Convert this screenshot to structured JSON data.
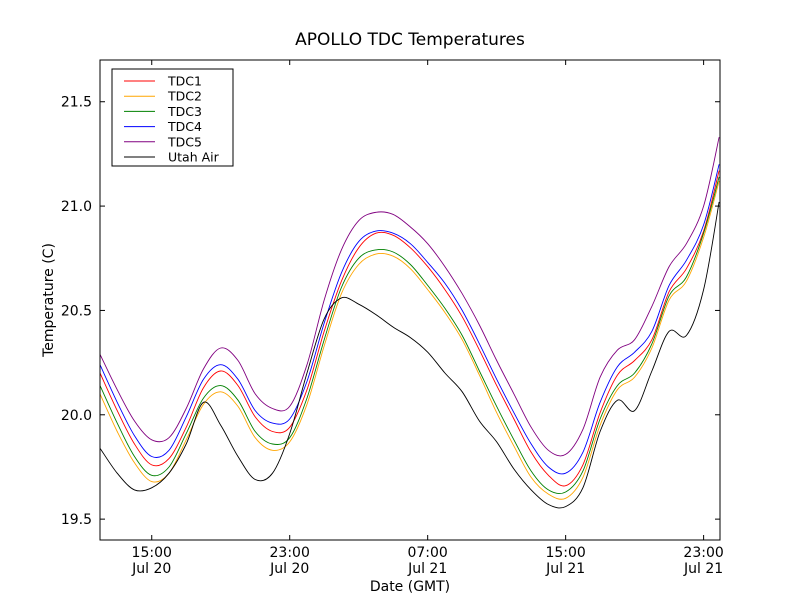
{
  "chart_data": {
    "type": "line",
    "title": "APOLLO TDC Temperatures",
    "xlabel": "Date (GMT)",
    "ylabel": "Temperature (C)",
    "x_unit": "hours since Jul 20 00:00 GMT",
    "xlim": [
      12.0,
      47.95
    ],
    "ylim": [
      19.4,
      21.7
    ],
    "grid": false,
    "legend_position": "top-left",
    "x_ticks": [
      {
        "value": 15,
        "line1": "15:00",
        "line2": "Jul 20"
      },
      {
        "value": 23,
        "line1": "23:00",
        "line2": "Jul 20"
      },
      {
        "value": 31,
        "line1": "07:00",
        "line2": "Jul 21"
      },
      {
        "value": 39,
        "line1": "15:00",
        "line2": "Jul 21"
      },
      {
        "value": 47,
        "line1": "23:00",
        "line2": "Jul 21"
      }
    ],
    "y_ticks": [
      {
        "value": 19.5,
        "label": "19.5"
      },
      {
        "value": 20.0,
        "label": "20.0"
      },
      {
        "value": 20.5,
        "label": "20.5"
      },
      {
        "value": 21.0,
        "label": "21.0"
      },
      {
        "value": 21.5,
        "label": "21.5"
      }
    ],
    "x": [
      12,
      13,
      14,
      15,
      16,
      17,
      18,
      19,
      20,
      21,
      22,
      23,
      24,
      25,
      26,
      27,
      28,
      29,
      30,
      31,
      32,
      33,
      34,
      35,
      36,
      37,
      38,
      39,
      40,
      41,
      42,
      43,
      44,
      45,
      46,
      47,
      47.9
    ],
    "series": [
      {
        "name": "TDC1",
        "color": "#ff0000",
        "values": [
          20.2,
          20.02,
          19.86,
          19.76,
          19.79,
          19.94,
          20.13,
          20.21,
          20.14,
          19.99,
          19.92,
          19.94,
          20.12,
          20.4,
          20.64,
          20.8,
          20.87,
          20.86,
          20.8,
          20.71,
          20.6,
          20.47,
          20.31,
          20.14,
          19.98,
          19.82,
          19.71,
          19.66,
          19.76,
          20.01,
          20.19,
          20.26,
          20.36,
          20.59,
          20.7,
          20.88,
          21.17
        ]
      },
      {
        "name": "TDC2",
        "color": "#ffa500",
        "values": [
          20.1,
          19.92,
          19.77,
          19.68,
          19.72,
          19.88,
          20.05,
          20.11,
          20.04,
          19.89,
          19.83,
          19.87,
          20.05,
          20.33,
          20.58,
          20.72,
          20.77,
          20.76,
          20.7,
          20.6,
          20.49,
          20.36,
          20.19,
          20.01,
          19.85,
          19.7,
          19.62,
          19.6,
          19.7,
          19.95,
          20.12,
          20.18,
          20.32,
          20.55,
          20.64,
          20.85,
          21.12
        ]
      },
      {
        "name": "TDC3",
        "color": "#008000",
        "values": [
          20.14,
          19.96,
          19.8,
          19.71,
          19.75,
          19.91,
          20.08,
          20.14,
          20.07,
          19.92,
          19.86,
          19.89,
          20.08,
          20.36,
          20.61,
          20.75,
          20.79,
          20.78,
          20.72,
          20.62,
          20.51,
          20.38,
          20.21,
          20.04,
          19.88,
          19.73,
          19.64,
          19.63,
          19.73,
          19.98,
          20.14,
          20.2,
          20.34,
          20.57,
          20.66,
          20.87,
          21.14
        ]
      },
      {
        "name": "TDC4",
        "color": "#0000ff",
        "values": [
          20.24,
          20.06,
          19.9,
          19.8,
          19.83,
          19.99,
          20.17,
          20.24,
          20.17,
          20.02,
          19.96,
          19.98,
          20.16,
          20.44,
          20.68,
          20.83,
          20.88,
          20.87,
          20.82,
          20.73,
          20.63,
          20.5,
          20.34,
          20.17,
          20.01,
          19.86,
          19.75,
          19.72,
          19.82,
          20.06,
          20.23,
          20.3,
          20.4,
          20.62,
          20.74,
          20.91,
          21.2
        ]
      },
      {
        "name": "TDC5",
        "color": "#800080",
        "values": [
          20.29,
          20.12,
          19.97,
          19.88,
          19.89,
          20.03,
          20.22,
          20.32,
          20.26,
          20.1,
          20.03,
          20.04,
          20.24,
          20.55,
          20.79,
          20.93,
          20.97,
          20.96,
          20.9,
          20.82,
          20.71,
          20.58,
          20.43,
          20.26,
          20.1,
          19.94,
          19.83,
          19.81,
          19.93,
          20.18,
          20.31,
          20.36,
          20.52,
          20.71,
          20.82,
          21.0,
          21.33
        ]
      },
      {
        "name": "Utah Air",
        "color": "#000000",
        "values": [
          19.84,
          19.72,
          19.64,
          19.65,
          19.72,
          19.86,
          20.06,
          19.95,
          19.8,
          19.69,
          19.72,
          19.91,
          20.2,
          20.46,
          20.56,
          20.53,
          20.48,
          20.42,
          20.37,
          20.3,
          20.2,
          20.11,
          19.97,
          19.87,
          19.74,
          19.64,
          19.57,
          19.56,
          19.65,
          19.92,
          20.07,
          20.02,
          20.21,
          20.4,
          20.38,
          20.6,
          21.02
        ]
      }
    ]
  }
}
